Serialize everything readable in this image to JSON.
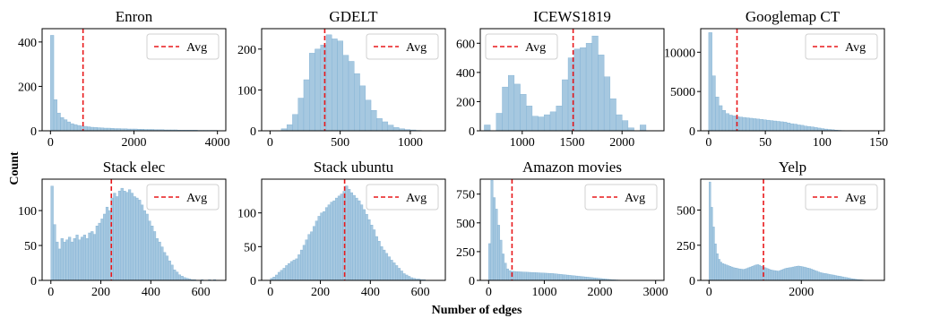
{
  "figure": {
    "ylabel": "Count",
    "xlabel": "Number of edges",
    "bar_color": "#a6c8e0",
    "bar_edge": "#7fb0d3",
    "avg_color": "#e8191c"
  },
  "chart_data": [
    {
      "type": "bar",
      "title": "Enron",
      "xlim": [
        -200,
        4200
      ],
      "ylim": [
        0,
        460
      ],
      "xticks": [
        0,
        2000,
        4000
      ],
      "yticks": [
        0,
        200,
        400
      ],
      "avg": 780,
      "legend": "Avg",
      "legend_position": "top-right",
      "bins": {
        "start": 0,
        "width": 80,
        "values": [
          430,
          140,
          80,
          60,
          50,
          40,
          32,
          28,
          24,
          22,
          20,
          18,
          16,
          15,
          14,
          13,
          12,
          12,
          11,
          10,
          10,
          9,
          9,
          8,
          8,
          8,
          7,
          7,
          6,
          6,
          6,
          5,
          5,
          5,
          4,
          4,
          4,
          4,
          3,
          3,
          3,
          3,
          3,
          3,
          2,
          2,
          2,
          2,
          2,
          2
        ]
      }
    },
    {
      "type": "bar",
      "title": "GDELT",
      "xlim": [
        -60,
        1250
      ],
      "ylim": [
        0,
        250
      ],
      "xticks": [
        0,
        500,
        1000
      ],
      "yticks": [
        0,
        100,
        200
      ],
      "avg": 390,
      "legend": "Avg",
      "legend_position": "top-right",
      "bins": {
        "start": 80,
        "width": 40,
        "values": [
          5,
          15,
          40,
          80,
          125,
          190,
          200,
          210,
          235,
          225,
          220,
          185,
          170,
          140,
          110,
          75,
          50,
          30,
          22,
          14,
          8,
          5,
          3,
          2,
          1
        ]
      }
    },
    {
      "type": "bar",
      "title": "ICEWS1819",
      "xlim": [
        580,
        2420
      ],
      "ylim": [
        0,
        700
      ],
      "xticks": [
        1000,
        1500,
        2000
      ],
      "yticks": [
        0,
        200,
        400,
        600
      ],
      "avg": 1510,
      "legend": "Avg",
      "legend_position": "top-left",
      "bins": {
        "start": 620,
        "width": 60,
        "values": [
          40,
          0,
          120,
          300,
          380,
          320,
          250,
          170,
          100,
          95,
          110,
          130,
          170,
          350,
          500,
          560,
          570,
          600,
          650,
          520,
          370,
          220,
          110,
          70,
          20,
          0,
          40
        ]
      }
    },
    {
      "type": "bar",
      "title": "Googlemap CT",
      "xlim": [
        -7,
        155
      ],
      "ylim": [
        0,
        13000
      ],
      "xticks": [
        0,
        50,
        100,
        150
      ],
      "yticks": [
        0,
        5000,
        10000
      ],
      "avg": 25,
      "legend": "Avg",
      "legend_position": "top-right",
      "bins": {
        "start": 0,
        "width": 3,
        "values": [
          12500,
          7000,
          4300,
          3200,
          2600,
          2200,
          2000,
          1900,
          1800,
          1750,
          1700,
          1650,
          1600,
          1550,
          1500,
          1450,
          1400,
          1350,
          1300,
          1250,
          1200,
          1150,
          1100,
          1000,
          900,
          850,
          750,
          700,
          600,
          550,
          500,
          420,
          350,
          280,
          220,
          170,
          130,
          90,
          60,
          40,
          25,
          15,
          8,
          5,
          3,
          2,
          1
        ]
      }
    },
    {
      "type": "bar",
      "title": "Stack elec",
      "xlim": [
        -35,
        700
      ],
      "ylim": [
        0,
        145
      ],
      "xticks": [
        0,
        200,
        400,
        600
      ],
      "yticks": [
        0,
        50,
        100
      ],
      "avg": 242,
      "legend": "Avg",
      "legend_position": "top-right",
      "bins": {
        "start": 0,
        "width": 10,
        "values": [
          135,
          80,
          55,
          45,
          60,
          55,
          58,
          62,
          55,
          60,
          65,
          58,
          62,
          65,
          60,
          68,
          70,
          66,
          78,
          82,
          88,
          95,
          105,
          100,
          118,
          125,
          120,
          128,
          132,
          128,
          126,
          130,
          125,
          120,
          118,
          115,
          108,
          100,
          95,
          85,
          78,
          70,
          60,
          55,
          48,
          40,
          35,
          28,
          22,
          15,
          12,
          8,
          6,
          4,
          3,
          2,
          1,
          1,
          0,
          0,
          1,
          0,
          0,
          1,
          0,
          1
        ]
      }
    },
    {
      "type": "bar",
      "title": "Stack ubuntu",
      "xlim": [
        -35,
        700
      ],
      "ylim": [
        0,
        150
      ],
      "xticks": [
        0,
        200,
        400,
        600
      ],
      "yticks": [
        0,
        50,
        100
      ],
      "avg": 297,
      "legend": "Avg",
      "legend_position": "top-right",
      "bins": {
        "start": 0,
        "width": 10,
        "values": [
          3,
          5,
          8,
          12,
          15,
          18,
          22,
          25,
          28,
          30,
          32,
          38,
          45,
          52,
          60,
          68,
          72,
          80,
          88,
          95,
          100,
          102,
          108,
          112,
          116,
          118,
          122,
          125,
          128,
          132,
          140,
          135,
          130,
          126,
          122,
          118,
          112,
          105,
          98,
          90,
          82,
          75,
          65,
          58,
          50,
          45,
          40,
          35,
          30,
          26,
          22,
          18,
          14,
          10,
          8,
          6,
          4,
          3,
          2,
          2,
          1,
          1
        ]
      }
    },
    {
      "type": "bar",
      "title": "Amazon movies",
      "xlim": [
        -150,
        3150
      ],
      "ylim": [
        0,
        880
      ],
      "xticks": [
        0,
        1000,
        2000,
        3000
      ],
      "yticks": [
        0,
        250,
        500,
        750
      ],
      "avg": 420,
      "legend": "Avg",
      "legend_position": "top-right",
      "bins": {
        "start": 0,
        "width": 40,
        "values": [
          320,
          870,
          720,
          620,
          480,
          350,
          230,
          150,
          100,
          85,
          80,
          78,
          76,
          75,
          74,
          73,
          72,
          71,
          70,
          69,
          68,
          67,
          66,
          65,
          64,
          63,
          62,
          61,
          60,
          58,
          56,
          54,
          52,
          50,
          48,
          46,
          44,
          42,
          40,
          38,
          36,
          34,
          32,
          30,
          28,
          26,
          24,
          22,
          20,
          18,
          16,
          14,
          12,
          10,
          8,
          6,
          5,
          4,
          3,
          2
        ]
      }
    },
    {
      "type": "bar",
      "title": "Yelp",
      "xlim": [
        -180,
        3800
      ],
      "ylim": [
        0,
        720
      ],
      "xticks": [
        0,
        2000
      ],
      "yticks": [
        0,
        250,
        500
      ],
      "avg": 1180,
      "legend": "Avg",
      "legend_position": "top-right",
      "bins": {
        "start": 0,
        "width": 40,
        "values": [
          700,
          520,
          380,
          260,
          190,
          150,
          130,
          120,
          115,
          110,
          105,
          100,
          95,
          90,
          88,
          85,
          82,
          80,
          78,
          80,
          85,
          90,
          95,
          100,
          105,
          110,
          112,
          108,
          100,
          95,
          90,
          85,
          80,
          75,
          72,
          70,
          68,
          66,
          70,
          75,
          80,
          85,
          88,
          90,
          92,
          95,
          98,
          100,
          102,
          100,
          98,
          95,
          92,
          88,
          85,
          80,
          75,
          70,
          65,
          60,
          55,
          52,
          50,
          48,
          45,
          42,
          40,
          38,
          35,
          32,
          30,
          28,
          25,
          22,
          20,
          18,
          15,
          12,
          10,
          8,
          6,
          5,
          4,
          3,
          2,
          1
        ]
      }
    }
  ]
}
